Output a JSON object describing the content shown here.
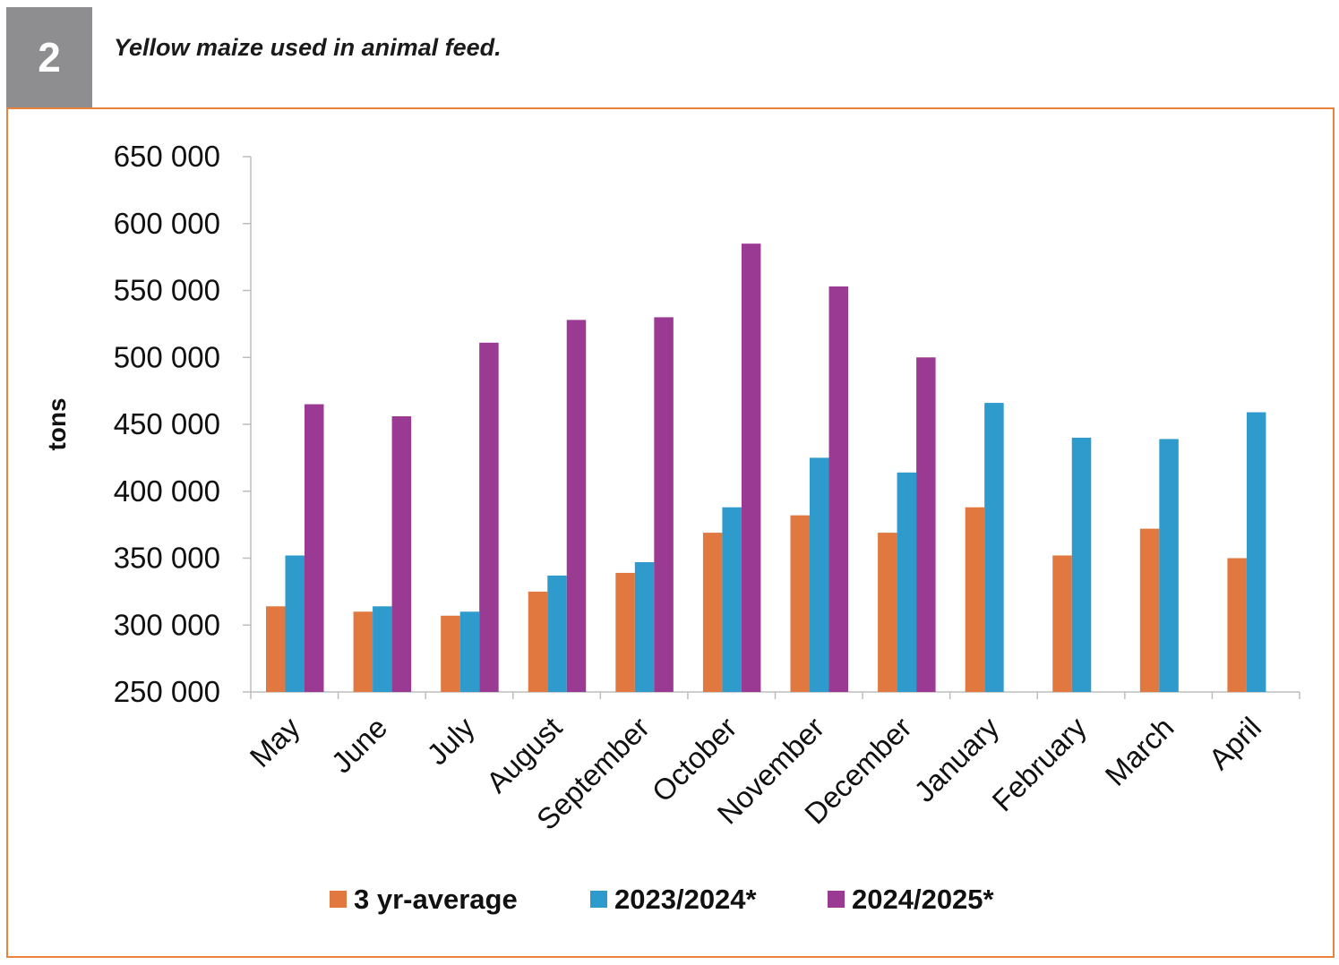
{
  "figure": {
    "number": "2",
    "title": "Yellow maize used in animal feed."
  },
  "chart_data": {
    "type": "bar",
    "ylabel": "tons",
    "ylim": [
      250000,
      650000
    ],
    "yticks": [
      250000,
      300000,
      350000,
      400000,
      450000,
      500000,
      550000,
      600000,
      650000
    ],
    "ytick_labels": [
      "250 000",
      "300 000",
      "350 000",
      "400 000",
      "450 000",
      "500 000",
      "550 000",
      "600 000",
      "650 000"
    ],
    "categories": [
      "May",
      "June",
      "July",
      "August",
      "September",
      "October",
      "November",
      "December",
      "January",
      "February",
      "March",
      "April"
    ],
    "series": [
      {
        "name": "3 yr-average",
        "color": "#e07840",
        "values": [
          314000,
          310000,
          307000,
          325000,
          339000,
          369000,
          382000,
          369000,
          388000,
          352000,
          372000,
          350000
        ]
      },
      {
        "name": "2023/2024*",
        "color": "#2e9bcc",
        "values": [
          352000,
          314000,
          310000,
          337000,
          347000,
          388000,
          425000,
          414000,
          466000,
          440000,
          439000,
          459000
        ]
      },
      {
        "name": "2024/2025*",
        "color": "#9b3a93",
        "values": [
          465000,
          456000,
          511000,
          528000,
          530000,
          585000,
          553000,
          500000,
          null,
          null,
          null,
          null
        ]
      }
    ],
    "legend_position": "bottom",
    "grid": false
  }
}
